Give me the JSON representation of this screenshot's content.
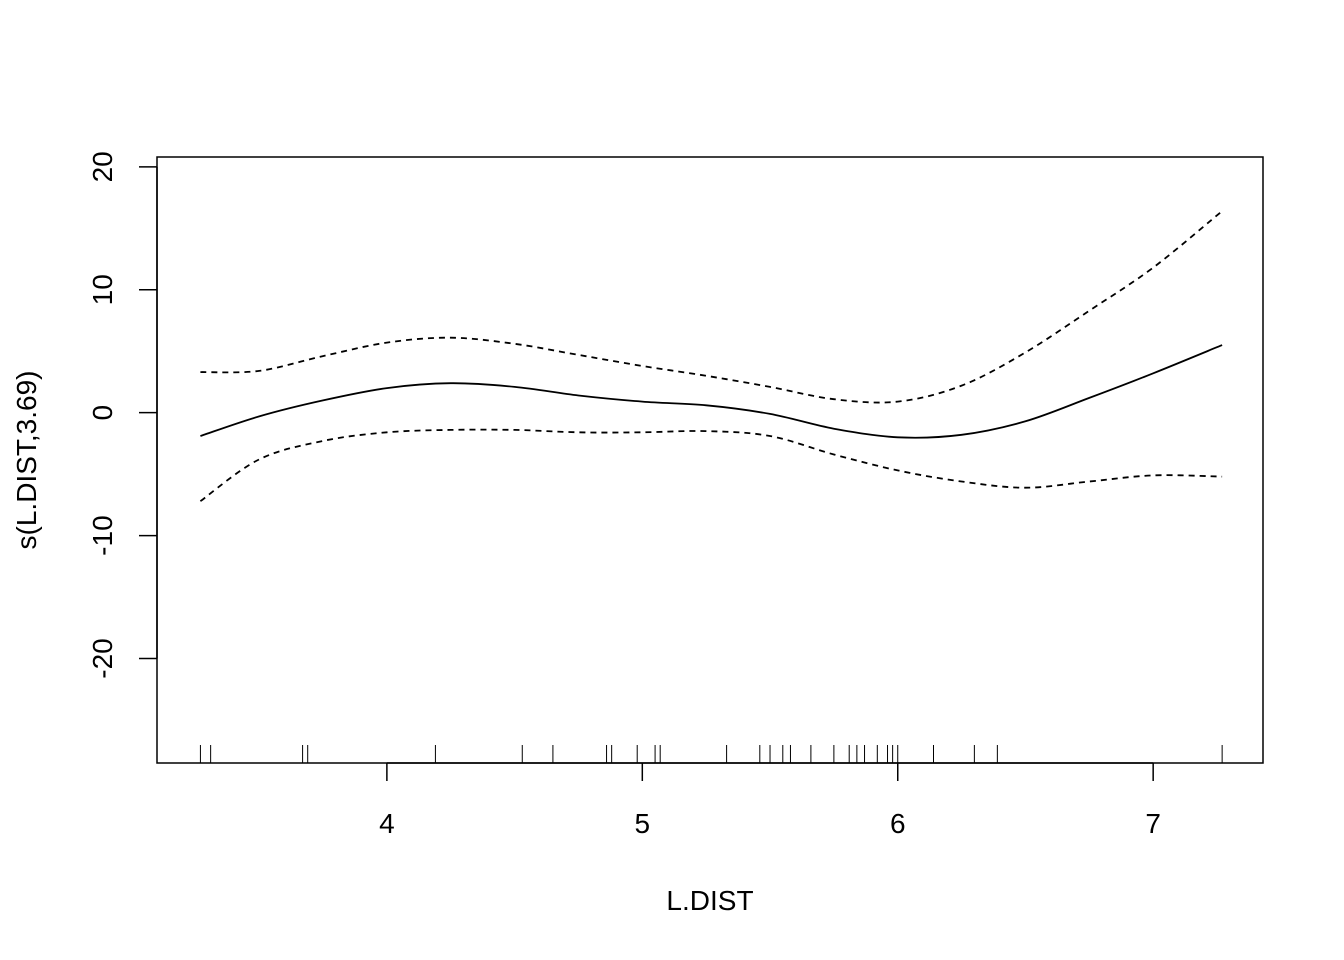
{
  "chart_data": {
    "type": "line",
    "title": "",
    "xlabel": "L.DIST",
    "ylabel": "s(L.DIST,3.69)",
    "xlim": [
      3.1,
      7.43
    ],
    "ylim": [
      -28.5,
      20.8
    ],
    "xticks": [
      4,
      5,
      6,
      7
    ],
    "yticks": [
      -20,
      -10,
      0,
      10,
      20
    ],
    "xtick_labels": [
      "4",
      "5",
      "6",
      "7"
    ],
    "ytick_labels": [
      "-20",
      "-10",
      "0",
      "10",
      "20"
    ],
    "grid": false,
    "legend": "none",
    "series": [
      {
        "style": "solid",
        "x": [
          3.27,
          3.5,
          3.75,
          4.0,
          4.25,
          4.5,
          4.75,
          5.0,
          5.25,
          5.5,
          5.75,
          6.0,
          6.25,
          6.5,
          6.75,
          7.0,
          7.27
        ],
        "y": [
          -1.9,
          -0.3,
          1.0,
          2.0,
          2.4,
          2.1,
          1.4,
          0.9,
          0.6,
          -0.1,
          -1.3,
          -2.0,
          -1.8,
          -0.7,
          1.2,
          3.2,
          5.5
        ]
      },
      {
        "style": "dashed",
        "x": [
          3.27,
          3.5,
          3.75,
          4.0,
          4.25,
          4.5,
          4.75,
          5.0,
          5.25,
          5.5,
          5.75,
          6.0,
          6.25,
          6.5,
          6.75,
          7.0,
          7.27
        ],
        "y": [
          3.3,
          3.4,
          4.6,
          5.7,
          6.1,
          5.6,
          4.7,
          3.8,
          3.0,
          2.1,
          1.1,
          0.9,
          2.2,
          4.9,
          8.3,
          11.8,
          16.4
        ]
      },
      {
        "style": "dashed",
        "x": [
          3.27,
          3.5,
          3.75,
          4.0,
          4.25,
          4.5,
          4.75,
          5.0,
          5.25,
          5.5,
          5.75,
          6.0,
          6.25,
          6.5,
          6.75,
          7.0,
          7.27
        ],
        "y": [
          -7.2,
          -3.8,
          -2.3,
          -1.6,
          -1.4,
          -1.4,
          -1.6,
          -1.6,
          -1.5,
          -1.9,
          -3.4,
          -4.7,
          -5.6,
          -6.1,
          -5.6,
          -5.1,
          -5.2
        ]
      }
    ],
    "rug": [
      3.27,
      3.31,
      3.67,
      3.69,
      4.19,
      4.53,
      4.65,
      4.86,
      4.88,
      4.98,
      5.05,
      5.07,
      5.33,
      5.46,
      5.5,
      5.55,
      5.58,
      5.66,
      5.75,
      5.81,
      5.84,
      5.87,
      5.92,
      5.96,
      5.98,
      6.0,
      6.14,
      6.3,
      6.39,
      7.27
    ]
  }
}
